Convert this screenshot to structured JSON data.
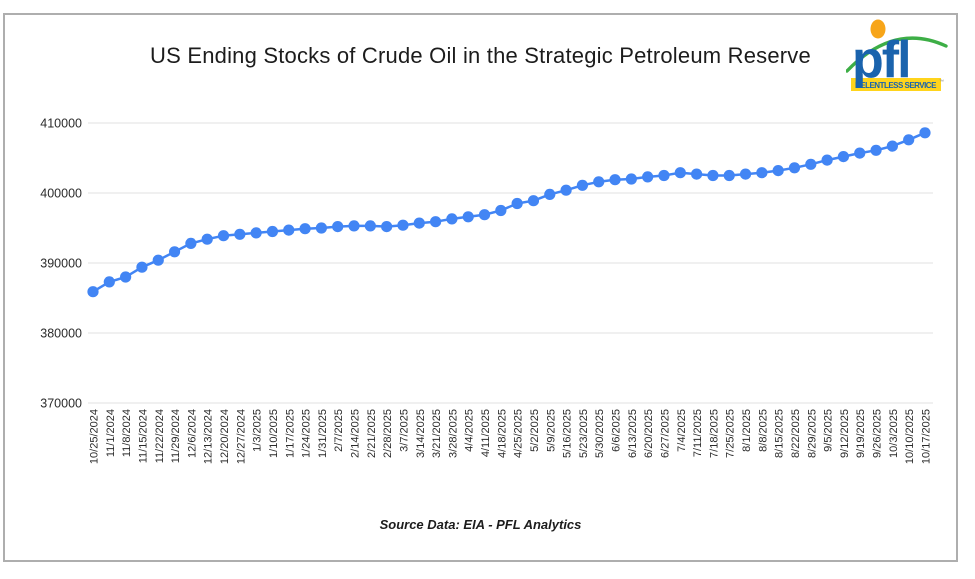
{
  "page": {
    "title": "US Ending Stocks of Crude Oil in the Strategic Petroleum Reserve",
    "footer": "Source Data: EIA - PFL Analytics"
  },
  "logo": {
    "text": "pfl",
    "tagline": "RELENTLESS SERVICE",
    "trademark": "™",
    "colors": {
      "blue": "#1a63ad",
      "green": "#3dae46",
      "orange": "#f7a519",
      "yellow": "#ffd41c"
    }
  },
  "chart_data": {
    "type": "line",
    "title": "US Ending Stocks of Crude Oil in the Strategic Petroleum Reserve",
    "xlabel": "",
    "ylabel": "",
    "x": [
      "10/25/2024",
      "11/1/2024",
      "11/8/2024",
      "11/15/2024",
      "11/22/2024",
      "11/29/2024",
      "12/6/2024",
      "12/13/2024",
      "12/20/2024",
      "12/27/2024",
      "1/3/2025",
      "1/10/2025",
      "1/17/2025",
      "1/24/2025",
      "1/31/2025",
      "2/7/2025",
      "2/14/2025",
      "2/21/2025",
      "2/28/2025",
      "3/7/2025",
      "3/14/2025",
      "3/21/2025",
      "3/28/2025",
      "4/4/2025",
      "4/11/2025",
      "4/18/2025",
      "4/25/2025",
      "5/2/2025",
      "5/9/2025",
      "5/16/2025",
      "5/23/2025",
      "5/30/2025",
      "6/6/2025",
      "6/13/2025",
      "6/20/2025",
      "6/27/2025",
      "7/4/2025",
      "7/11/2025",
      "7/18/2025",
      "7/25/2025",
      "8/1/2025",
      "8/8/2025",
      "8/15/2025",
      "8/22/2025",
      "8/29/2025",
      "9/5/2025",
      "9/12/2025",
      "9/19/2025",
      "9/26/2025",
      "10/3/2025",
      "10/10/2025",
      "10/17/2025"
    ],
    "values": [
      385900,
      387300,
      388000,
      389400,
      390400,
      391600,
      392800,
      393400,
      393900,
      394100,
      394300,
      394500,
      394700,
      394900,
      395000,
      395200,
      395300,
      395300,
      395200,
      395400,
      395700,
      395900,
      396300,
      396600,
      396900,
      397500,
      398500,
      398900,
      399800,
      400400,
      401100,
      401600,
      401900,
      402000,
      402300,
      402500,
      402900,
      402700,
      402500,
      402500,
      402700,
      402900,
      403200,
      403600,
      404100,
      404700,
      405200,
      405700,
      406100,
      406700,
      407600,
      408600
    ],
    "ylim": [
      370000,
      410000
    ],
    "yticks": [
      370000,
      380000,
      390000,
      400000,
      410000
    ],
    "grid": true,
    "legend": "none",
    "marker": "circle",
    "line_color": "#4285F4",
    "gridline_color": "#e2e2e2",
    "tick_color": "#2b2b2b",
    "source_note": "Source Data: EIA - PFL Analytics"
  }
}
